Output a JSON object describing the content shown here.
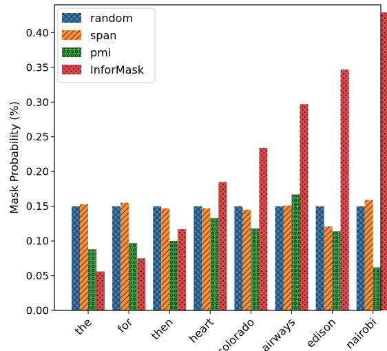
{
  "chart_data": {
    "type": "bar",
    "ylabel": "Mask Probability (%)",
    "xlabel": "",
    "ylim": [
      0,
      0.44
    ],
    "yticks": [
      "0.00",
      "0.05",
      "0.10",
      "0.15",
      "0.20",
      "0.25",
      "0.30",
      "0.35",
      "0.40"
    ],
    "categories": [
      "the",
      "for",
      "then",
      "heart",
      "colorado",
      "airways",
      "edison",
      "nairobi"
    ],
    "series": [
      {
        "name": "random",
        "color": "#3c7bb0",
        "pattern": "crosshatch",
        "values": [
          0.15,
          0.15,
          0.15,
          0.15,
          0.15,
          0.15,
          0.15,
          0.15
        ]
      },
      {
        "name": "span",
        "color": "#f68f36",
        "pattern": "diagonal",
        "values": [
          0.153,
          0.155,
          0.147,
          0.147,
          0.145,
          0.151,
          0.121,
          0.159
        ]
      },
      {
        "name": "pmi",
        "color": "#3a9b43",
        "pattern": "circles",
        "values": [
          0.088,
          0.097,
          0.1,
          0.133,
          0.118,
          0.167,
          0.114,
          0.062
        ]
      },
      {
        "name": "InforMask",
        "color": "#d8474a",
        "pattern": "dots",
        "values": [
          0.056,
          0.075,
          0.117,
          0.185,
          0.234,
          0.297,
          0.347,
          0.429
        ]
      }
    ],
    "legend_position": "top-left",
    "grid": false
  }
}
